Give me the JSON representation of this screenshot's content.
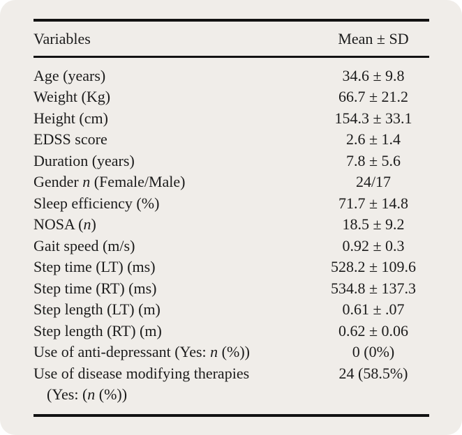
{
  "page": {
    "background": "#ffffff",
    "card_background": "#f0ede9",
    "text_color": "#1b1b1b",
    "rule_color": "#121212"
  },
  "table": {
    "header": {
      "variables": "Variables",
      "mean_sd": "Mean ± SD"
    },
    "rows": [
      {
        "label": [
          {
            "t": "Age (years)"
          }
        ],
        "value": "34.6 ± 9.8"
      },
      {
        "label": [
          {
            "t": "Weight (Kg)"
          }
        ],
        "value": "66.7 ± 21.2"
      },
      {
        "label": [
          {
            "t": "Height (cm)"
          }
        ],
        "value": "154.3 ± 33.1"
      },
      {
        "label": [
          {
            "t": "EDSS score"
          }
        ],
        "value": "2.6 ± 1.4"
      },
      {
        "label": [
          {
            "t": "Duration (years)"
          }
        ],
        "value": "7.8 ± 5.6"
      },
      {
        "label": [
          {
            "t": "Gender "
          },
          {
            "t": "n",
            "i": true
          },
          {
            "t": " (Female/Male)"
          }
        ],
        "value": "24/17"
      },
      {
        "label": [
          {
            "t": "Sleep efficiency (%)"
          }
        ],
        "value": "71.7 ± 14.8"
      },
      {
        "label": [
          {
            "t": "NOSA ("
          },
          {
            "t": "n",
            "i": true
          },
          {
            "t": ")"
          }
        ],
        "value": "18.5 ± 9.2"
      },
      {
        "label": [
          {
            "t": "Gait speed (m/s)"
          }
        ],
        "value": "0.92 ± 0.3"
      },
      {
        "label": [
          {
            "t": "Step time (LT) (ms)"
          }
        ],
        "value": "528.2 ± 109.6"
      },
      {
        "label": [
          {
            "t": "Step time (RT) (ms)"
          }
        ],
        "value": "534.8 ± 137.3"
      },
      {
        "label": [
          {
            "t": "Step length (LT) (m)"
          }
        ],
        "value": "0.61 ± .07"
      },
      {
        "label": [
          {
            "t": "Step length (RT) (m)"
          }
        ],
        "value": "0.62 ± 0.06"
      },
      {
        "label": [
          {
            "t": "Use of anti-depressant (Yes: "
          },
          {
            "t": "n",
            "i": true
          },
          {
            "t": " (%))"
          }
        ],
        "value": "0 (0%)"
      },
      {
        "label": [
          {
            "t": "Use of disease modifying therapies"
          }
        ],
        "label2": [
          {
            "t": "(Yes: ("
          },
          {
            "t": "n",
            "i": true
          },
          {
            "t": " (%))"
          }
        ],
        "value": "24 (58.5%)"
      }
    ]
  }
}
